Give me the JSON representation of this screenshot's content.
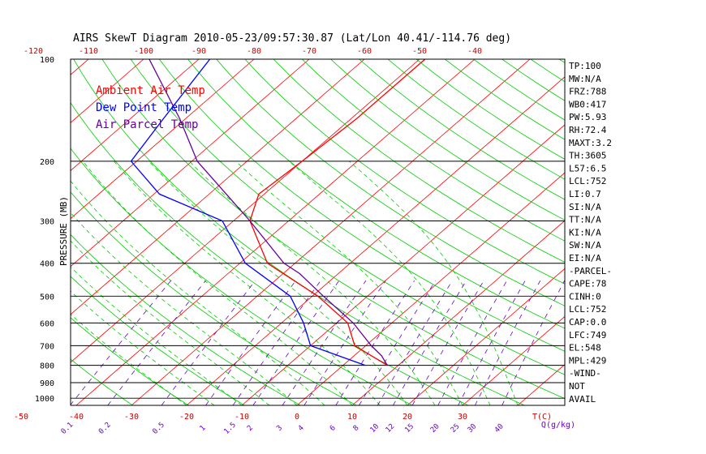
{
  "title": "AIRS SkewT Diagram 2010-05-23/09:57:30.87 (Lat/Lon 40.41/-114.76 deg)",
  "legend": [
    {
      "label": "Ambient Air Temp",
      "color": "#ff0000"
    },
    {
      "label": "Dew Point Temp",
      "color": "#0000ff"
    },
    {
      "label": "Air Parcel Temp",
      "color": "#660099"
    }
  ],
  "colors": {
    "isobar": "#000000",
    "isotherm": "#ff0000",
    "dry_adiabat": "#00cc00",
    "moist_adiabat": "#00cc00",
    "mixing_ratio": "#6600cc",
    "axis_text": "#cc0000",
    "pressure_text": "#000000",
    "mixing_text": "#6600cc"
  },
  "y_axis_label": "PRESSURE (MB)",
  "pressure_ticks": [
    "100",
    "200",
    "300",
    "400",
    "500",
    "600",
    "700",
    "800",
    "900",
    "1000"
  ],
  "top_temp_ticks": [
    "-120",
    "-110",
    "-100",
    "-90",
    "-80",
    "-70",
    "-60",
    "-50",
    "-40"
  ],
  "bottom_temp_ticks": [
    "-50",
    "-40",
    "-30",
    "-20",
    "-10",
    "0",
    "10",
    "20",
    "30"
  ],
  "bottom_temp_unit": "T(C)",
  "mixing_ratio_ticks": [
    "0.1",
    "0.2",
    "0.5",
    "1",
    "1.5",
    "2",
    "3",
    "4",
    "6",
    "8",
    "10",
    "12",
    "15",
    "20",
    "25",
    "30",
    "40"
  ],
  "mixing_ratio_unit": "Q(g/kg)",
  "indices": [
    "TP:100",
    "MW:N/A",
    "FRZ:788",
    "WB0:417",
    "PW:5.93",
    "RH:72.4",
    "MAXT:3.2",
    "TH:3605",
    "L57:6.5",
    "LCL:752",
    "LI:0.7",
    "SI:N/A",
    "TT:N/A",
    "KI:N/A",
    "SW:N/A",
    "EI:N/A",
    "-PARCEL-",
    "CAPE:78",
    "CINH:0",
    "LCL:752",
    "CAP:0.0",
    "LFC:749",
    "EL:548",
    "MPL:429",
    "-WIND-",
    "NOT",
    "AVAIL"
  ],
  "chart_data": {
    "type": "line",
    "title": "AIRS SkewT Diagram 2010-05-23/09:57:30.87 (Lat/Lon 40.41/-114.76 deg)",
    "ylabel": "PRESSURE (MB)",
    "xlabel": "T(C)",
    "y_scale": "log",
    "ylim": [
      1000,
      100
    ],
    "series": [
      {
        "name": "Ambient Air Temp",
        "pressure": [
          800,
          700,
          600,
          500,
          400,
          300,
          250,
          200,
          150,
          100
        ],
        "temperature": [
          8,
          -2,
          -8,
          -19,
          -35,
          -47,
          -51,
          -50,
          -49,
          -49
        ]
      },
      {
        "name": "Dew Point Temp",
        "pressure": [
          800,
          700,
          600,
          500,
          400,
          300,
          250,
          200,
          150,
          100
        ],
        "temperature": [
          4,
          -10,
          -16,
          -24,
          -39,
          -52,
          -69,
          -81,
          -84,
          -88
        ]
      },
      {
        "name": "Air Parcel Temp",
        "pressure": [
          800,
          750,
          700,
          600,
          500,
          429,
          400,
          300,
          200,
          150,
          100
        ],
        "temperature": [
          8,
          5,
          1,
          -7,
          -18,
          -27,
          -32,
          -47,
          -69,
          -81,
          -99
        ]
      }
    ]
  }
}
